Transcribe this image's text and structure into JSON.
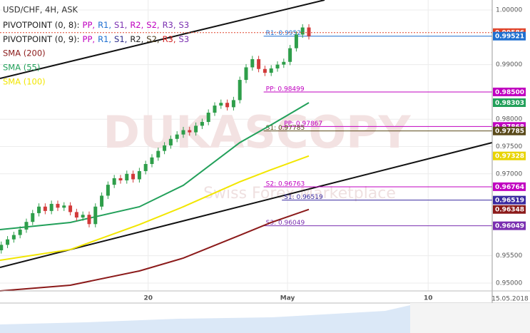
{
  "chart_data": {
    "type": "candlestick",
    "title": "USD/CHF, 4H, ASK",
    "legend": [
      {
        "name": "PIVOTPOINT (0, 8):",
        "items": [
          {
            "text": "PP,",
            "color": "#c000c0"
          },
          {
            "text": "R1,",
            "color": "#1e6fd0"
          },
          {
            "text": "S1,",
            "color": "#7a2fb0"
          },
          {
            "text": "R2,",
            "color": "#c000c0"
          },
          {
            "text": "S2,",
            "color": "#c000c0"
          },
          {
            "text": "R3,",
            "color": "#7a2fb0"
          },
          {
            "text": "S3",
            "color": "#7a2fb0"
          }
        ]
      },
      {
        "name": "PIVOTPOINT (0, 9):",
        "items": [
          {
            "text": "PP,",
            "color": "#c000c0"
          },
          {
            "text": "R1,",
            "color": "#1e6fd0"
          },
          {
            "text": "S1,",
            "color": "#2b2b8a"
          },
          {
            "text": "R2,",
            "color": "#222222"
          },
          {
            "text": "S2,",
            "color": "#4a3b1a"
          },
          {
            "text": "R3,",
            "color": "#d02020"
          },
          {
            "text": "S3",
            "color": "#7a2fb0"
          }
        ]
      }
    ],
    "watermark": "DUKASCOPY",
    "watermark_sub": "Swiss Forex Marketplace",
    "date_label": "15.05.2018",
    "xlim": [
      -0.2,
      78.2
    ],
    "xticks": [
      {
        "value": 23.4,
        "label": "20"
      },
      {
        "value": 45.6,
        "label": "May"
      },
      {
        "value": 68,
        "label": "10"
      }
    ],
    "ylim": [
      0.94856,
      1.00183
    ],
    "yticks": [
      {
        "value": 1.0,
        "label": "1.00000"
      },
      {
        "value": 0.99,
        "label": "0.99000"
      },
      {
        "value": 0.98,
        "label": "0.98000"
      },
      {
        "value": 0.975,
        "label": "0.97500"
      },
      {
        "value": 0.97,
        "label": "0.97000"
      },
      {
        "value": 0.955,
        "label": "0.95500"
      },
      {
        "value": 0.95,
        "label": "0.95000"
      }
    ],
    "grid": true,
    "up_color": "#2e9e4a",
    "down_color": "#d23a3a",
    "open": [
      0.956,
      0.957,
      0.958,
      0.9588,
      0.9598,
      0.9612,
      0.9628,
      0.964,
      0.9632,
      0.9645,
      0.9638,
      0.9642,
      0.963,
      0.962,
      0.9625,
      0.9608,
      0.964,
      0.966,
      0.968,
      0.9692,
      0.9688,
      0.97,
      0.969,
      0.9705,
      0.9718,
      0.973,
      0.9742,
      0.9752,
      0.9764,
      0.9772,
      0.978,
      0.9776,
      0.9788,
      0.9795,
      0.9812,
      0.9825,
      0.983,
      0.9822,
      0.9835,
      0.9872,
      0.9895,
      0.991,
      0.9892,
      0.9885,
      0.9893,
      0.99,
      0.9905,
      0.993,
      0.9955,
      0.9968
    ],
    "high": [
      0.9576,
      0.9586,
      0.9594,
      0.9604,
      0.9618,
      0.9634,
      0.9646,
      0.9646,
      0.9651,
      0.9651,
      0.9648,
      0.9648,
      0.9636,
      0.9631,
      0.9631,
      0.9646,
      0.9666,
      0.9686,
      0.9698,
      0.9698,
      0.9706,
      0.9706,
      0.9711,
      0.9724,
      0.9736,
      0.9748,
      0.9758,
      0.977,
      0.9778,
      0.9786,
      0.9786,
      0.9794,
      0.9801,
      0.9818,
      0.9831,
      0.9836,
      0.9836,
      0.9841,
      0.9878,
      0.9901,
      0.9916,
      0.9916,
      0.9898,
      0.9899,
      0.9906,
      0.9911,
      0.9936,
      0.9961,
      0.9974,
      0.9974
    ],
    "low": [
      0.9554,
      0.9564,
      0.9574,
      0.9582,
      0.9592,
      0.9606,
      0.9622,
      0.9626,
      0.9626,
      0.9632,
      0.9632,
      0.9624,
      0.9614,
      0.9614,
      0.9602,
      0.9602,
      0.9634,
      0.9654,
      0.9674,
      0.9682,
      0.9682,
      0.9684,
      0.9684,
      0.9699,
      0.9712,
      0.9724,
      0.9736,
      0.9746,
      0.9758,
      0.9766,
      0.977,
      0.977,
      0.9782,
      0.9789,
      0.9806,
      0.9819,
      0.9816,
      0.9816,
      0.9829,
      0.9866,
      0.9889,
      0.9886,
      0.9879,
      0.9879,
      0.9887,
      0.9894,
      0.9899,
      0.9924,
      0.9949,
      0.9946
    ],
    "close": [
      0.957,
      0.958,
      0.9588,
      0.9598,
      0.9612,
      0.9628,
      0.964,
      0.9632,
      0.9645,
      0.9638,
      0.9642,
      0.963,
      0.962,
      0.9625,
      0.9608,
      0.964,
      0.966,
      0.968,
      0.9692,
      0.9688,
      0.97,
      0.969,
      0.9705,
      0.9718,
      0.973,
      0.9742,
      0.9752,
      0.9764,
      0.9772,
      0.978,
      0.9776,
      0.9788,
      0.9795,
      0.9812,
      0.9825,
      0.983,
      0.9822,
      0.9835,
      0.9872,
      0.9895,
      0.991,
      0.9892,
      0.9885,
      0.9893,
      0.99,
      0.9905,
      0.993,
      0.9955,
      0.9968,
      0.9952
    ],
    "series": [
      {
        "name": "SMA (200)",
        "color": "#8b1a1a",
        "x": [
          -0.2,
          11,
          22,
          29,
          38,
          43,
          49
        ],
        "values": [
          0.94856,
          0.9496,
          0.95222,
          0.95457,
          0.95875,
          0.9611,
          0.96348
        ]
      },
      {
        "name": "SMA (55)",
        "color": "#22a05a",
        "x": [
          -0.2,
          11,
          22,
          29,
          38,
          43,
          49
        ],
        "values": [
          0.95979,
          0.9611,
          0.96397,
          0.96789,
          0.97572,
          0.97898,
          0.98303
        ]
      },
      {
        "name": "SMA (100)",
        "color": "#f2e600",
        "x": [
          -0.2,
          11,
          22,
          29,
          38,
          43,
          49
        ],
        "values": [
          0.95418,
          0.95614,
          0.96071,
          0.96397,
          0.96854,
          0.97076,
          0.97328
        ]
      }
    ],
    "trend_lines": [
      {
        "x": [
          -0.2,
          51.5
        ],
        "values": [
          0.98747,
          1.00183
        ]
      },
      {
        "x": [
          -0.2,
          78.2
        ],
        "values": [
          0.95287,
          0.97572
        ]
      }
    ],
    "pivot_lines": [
      {
        "label": "R1: 0.9952",
        "value": 0.99521,
        "from": 41.8,
        "color": "#1e6fd0"
      },
      {
        "label": "PP: 0.98499",
        "value": 0.98499,
        "from": 41.8,
        "color": "#c000c0"
      },
      {
        "label": "PP: 0.97867",
        "value": 0.97867,
        "from": 44.7,
        "color": "#c000c0"
      },
      {
        "label": "S1: 0.97785",
        "value": 0.97785,
        "from": 41.8,
        "color": "#5a4a1a"
      },
      {
        "label": "S2: 0.96763",
        "value": 0.96763,
        "from": 41.8,
        "color": "#c000c0"
      },
      {
        "label": "S1: 0.96519",
        "value": 0.96519,
        "from": 44.7,
        "color": "#3a2aa0"
      },
      {
        "label": "S3: 0.96049",
        "value": 0.96049,
        "from": 41.8,
        "color": "#7a2fb0"
      }
    ],
    "price_labels": [
      {
        "value": 0.99586,
        "label": "0.99586",
        "color": "#e0452c"
      },
      {
        "value": 0.99521,
        "label": "0.99521",
        "color": "#1e6fd0"
      },
      {
        "value": 0.985,
        "label": "0.98500",
        "color": "#c000c0"
      },
      {
        "value": 0.98303,
        "label": "0.98303",
        "color": "#22a05a"
      },
      {
        "value": 0.97868,
        "label": "0.97868",
        "color": "#c000c0"
      },
      {
        "value": 0.97785,
        "label": "0.97785",
        "color": "#5a4a1a"
      },
      {
        "value": 0.97328,
        "label": "0.97328",
        "color": "#e8d400"
      },
      {
        "value": 0.96764,
        "label": "0.96764",
        "color": "#c000c0"
      },
      {
        "value": 0.96519,
        "label": "0.96519",
        "color": "#3a2aa0"
      },
      {
        "value": 0.96348,
        "label": "0.96348",
        "color": "#8b1a1a"
      },
      {
        "value": 0.96049,
        "label": "0.96049",
        "color": "#7a2fb0"
      }
    ]
  }
}
